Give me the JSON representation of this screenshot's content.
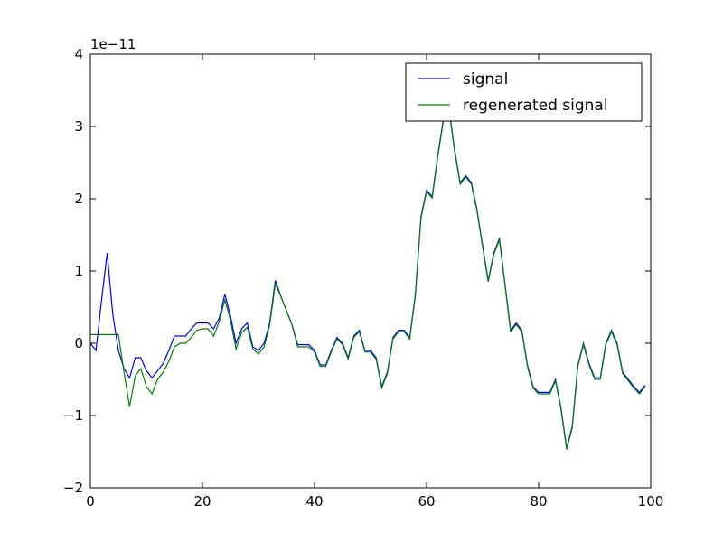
{
  "chart_data": {
    "type": "line",
    "title": "",
    "xlabel": "",
    "ylabel": "",
    "y_scale_label": "1e−11",
    "xlim": [
      0,
      100
    ],
    "ylim": [
      -2,
      4
    ],
    "x_ticks": [
      0,
      20,
      40,
      60,
      80,
      100
    ],
    "y_ticks": [
      -2,
      -1,
      0,
      1,
      2,
      3,
      4
    ],
    "x_tick_labels": [
      "0",
      "20",
      "40",
      "60",
      "80",
      "100"
    ],
    "y_tick_labels": [
      "−2",
      "−1",
      "0",
      "1",
      "2",
      "3",
      "4"
    ],
    "grid": false,
    "legend_position": "top-right",
    "series": [
      {
        "name": "signal",
        "color": "#0000ff",
        "x": [
          0,
          1,
          2,
          3,
          4,
          5,
          6,
          7,
          8,
          9,
          10,
          11,
          12,
          13,
          14,
          15,
          16,
          17,
          18,
          19,
          20,
          21,
          22,
          23,
          24,
          25,
          26,
          27,
          28,
          29,
          30,
          31,
          32,
          33,
          34,
          35,
          36,
          37,
          38,
          39,
          40,
          41,
          42,
          43,
          44,
          45,
          46,
          47,
          48,
          49,
          50,
          51,
          52,
          53,
          54,
          55,
          56,
          57,
          58,
          59,
          60,
          61,
          62,
          63,
          64,
          65,
          66,
          67,
          68,
          69,
          70,
          71,
          72,
          73,
          74,
          75,
          76,
          77,
          78,
          79,
          80,
          81,
          82,
          83,
          84,
          85,
          86,
          87,
          88,
          89,
          90,
          91,
          92,
          93,
          94,
          95,
          96,
          97,
          98,
          99
        ],
        "values": [
          0,
          -0.1,
          0.6,
          1.25,
          0.4,
          -0.1,
          -0.35,
          -0.48,
          -0.2,
          -0.2,
          -0.38,
          -0.48,
          -0.38,
          -0.28,
          -0.1,
          0.1,
          0.1,
          0.1,
          0.2,
          0.28,
          0.28,
          0.28,
          0.2,
          0.35,
          0.68,
          0.38,
          0,
          0.2,
          0.28,
          -0.05,
          -0.1,
          0,
          0.28,
          0.87,
          0.65,
          0.45,
          0.25,
          -0.02,
          -0.02,
          -0.02,
          -0.1,
          -0.3,
          -0.3,
          -0.1,
          0.08,
          0,
          -0.2,
          0.1,
          0.18,
          -0.1,
          -0.1,
          -0.2,
          -0.6,
          -0.4,
          0.08,
          0.18,
          0.18,
          0.08,
          0.68,
          1.75,
          2.12,
          2.03,
          2.6,
          3.1,
          3.25,
          2.68,
          2.22,
          2.32,
          2.22,
          1.85,
          1.35,
          0.87,
          1.25,
          1.45,
          0.82,
          0.18,
          0.28,
          0.18,
          -0.3,
          -0.6,
          -0.68,
          -0.68,
          -0.68,
          -0.5,
          -0.9,
          -1.45,
          -1.15,
          -0.3,
          0,
          -0.28,
          -0.48,
          -0.48,
          0,
          0.18,
          0,
          -0.4,
          -0.5,
          -0.6,
          -0.68,
          -0.58
        ]
      },
      {
        "name": "regenerated signal",
        "color": "#008000",
        "x": [
          0,
          1,
          2,
          3,
          4,
          5,
          6,
          7,
          8,
          9,
          10,
          11,
          12,
          13,
          14,
          15,
          16,
          17,
          18,
          19,
          20,
          21,
          22,
          23,
          24,
          25,
          26,
          27,
          28,
          29,
          30,
          31,
          32,
          33,
          34,
          35,
          36,
          37,
          38,
          39,
          40,
          41,
          42,
          43,
          44,
          45,
          46,
          47,
          48,
          49,
          50,
          51,
          52,
          53,
          54,
          55,
          56,
          57,
          58,
          59,
          60,
          61,
          62,
          63,
          64,
          65,
          66,
          67,
          68,
          69,
          70,
          71,
          72,
          73,
          74,
          75,
          76,
          77,
          78,
          79,
          80,
          81,
          82,
          83,
          84,
          85,
          86,
          87,
          88,
          89,
          90,
          91,
          92,
          93,
          94,
          95,
          96,
          97,
          98,
          99
        ],
        "values": [
          0.12,
          0.12,
          0.12,
          0.12,
          0.12,
          0.12,
          -0.4,
          -0.88,
          -0.45,
          -0.35,
          -0.6,
          -0.7,
          -0.5,
          -0.4,
          -0.25,
          -0.05,
          0,
          0,
          0.08,
          0.18,
          0.2,
          0.2,
          0.1,
          0.3,
          0.6,
          0.32,
          -0.08,
          0.15,
          0.22,
          -0.08,
          -0.15,
          -0.05,
          0.25,
          0.82,
          0.65,
          0.45,
          0.25,
          -0.05,
          -0.05,
          -0.05,
          -0.12,
          -0.32,
          -0.32,
          -0.12,
          0.06,
          -0.02,
          -0.22,
          0.08,
          0.16,
          -0.12,
          -0.12,
          -0.22,
          -0.62,
          -0.42,
          0.06,
          0.16,
          0.16,
          0.06,
          0.66,
          1.73,
          2.1,
          2.01,
          2.58,
          3.08,
          3.23,
          2.66,
          2.2,
          2.3,
          2.2,
          1.83,
          1.33,
          0.85,
          1.23,
          1.43,
          0.8,
          0.16,
          0.26,
          0.16,
          -0.32,
          -0.62,
          -0.7,
          -0.7,
          -0.7,
          -0.52,
          -0.92,
          -1.47,
          -1.17,
          -0.32,
          -0.02,
          -0.3,
          -0.5,
          -0.5,
          -0.02,
          0.16,
          -0.02,
          -0.42,
          -0.52,
          -0.62,
          -0.7,
          -0.6
        ]
      }
    ]
  }
}
